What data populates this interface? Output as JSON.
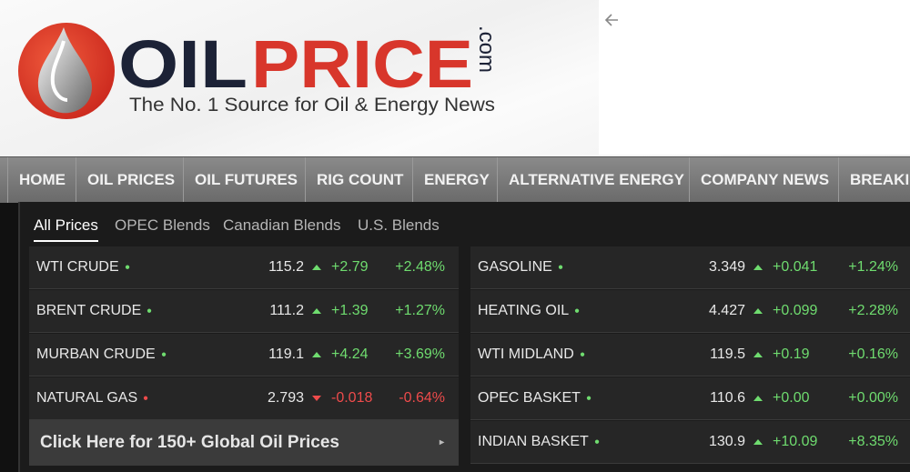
{
  "header": {
    "logo": {
      "oil": "OIL",
      "price": "PRICE",
      "com": ".com"
    },
    "tagline": "The No. 1 Source for Oil & Energy News"
  },
  "nav": {
    "items": [
      "HOME",
      "OIL PRICES",
      "OIL FUTURES",
      "RIG COUNT",
      "ENERGY",
      "ALTERNATIVE ENERGY",
      "COMPANY NEWS",
      "BREAKI"
    ]
  },
  "tabs": {
    "items": [
      "All Prices",
      "OPEC Blends",
      "Canadian Blends",
      "U.S. Blends"
    ],
    "active": 0
  },
  "prices": {
    "left": {
      "rows": [
        {
          "name": "WTI CRUDE",
          "price": "115.2",
          "change": "+2.79",
          "percent": "+2.48%",
          "direction": "up"
        },
        {
          "name": "BRENT CRUDE",
          "price": "111.2",
          "change": "+1.39",
          "percent": "+1.27%",
          "direction": "up"
        },
        {
          "name": "MURBAN CRUDE",
          "price": "119.1",
          "change": "+4.24",
          "percent": "+3.69%",
          "direction": "up"
        },
        {
          "name": "NATURAL GAS",
          "price": "2.793",
          "change": "-0.018",
          "percent": "-0.64%",
          "direction": "down"
        }
      ],
      "button": "Click Here for 150+ Global Oil Prices"
    },
    "right": {
      "rows": [
        {
          "name": "GASOLINE",
          "price": "3.349",
          "change": "+0.041",
          "percent": "+1.24%",
          "direction": "up"
        },
        {
          "name": "HEATING OIL",
          "price": "4.427",
          "change": "+0.099",
          "percent": "+2.28%",
          "direction": "up"
        },
        {
          "name": "WTI MIDLAND",
          "price": "119.5",
          "change": "+0.19",
          "percent": "+0.16%",
          "direction": "up"
        },
        {
          "name": "OPEC BASKET",
          "price": "110.6",
          "change": "+0.00",
          "percent": "+0.00%",
          "direction": "up"
        },
        {
          "name": "INDIAN BASKET",
          "price": "130.9",
          "change": "+10.09",
          "percent": "+8.35%",
          "direction": "up"
        }
      ]
    }
  }
}
